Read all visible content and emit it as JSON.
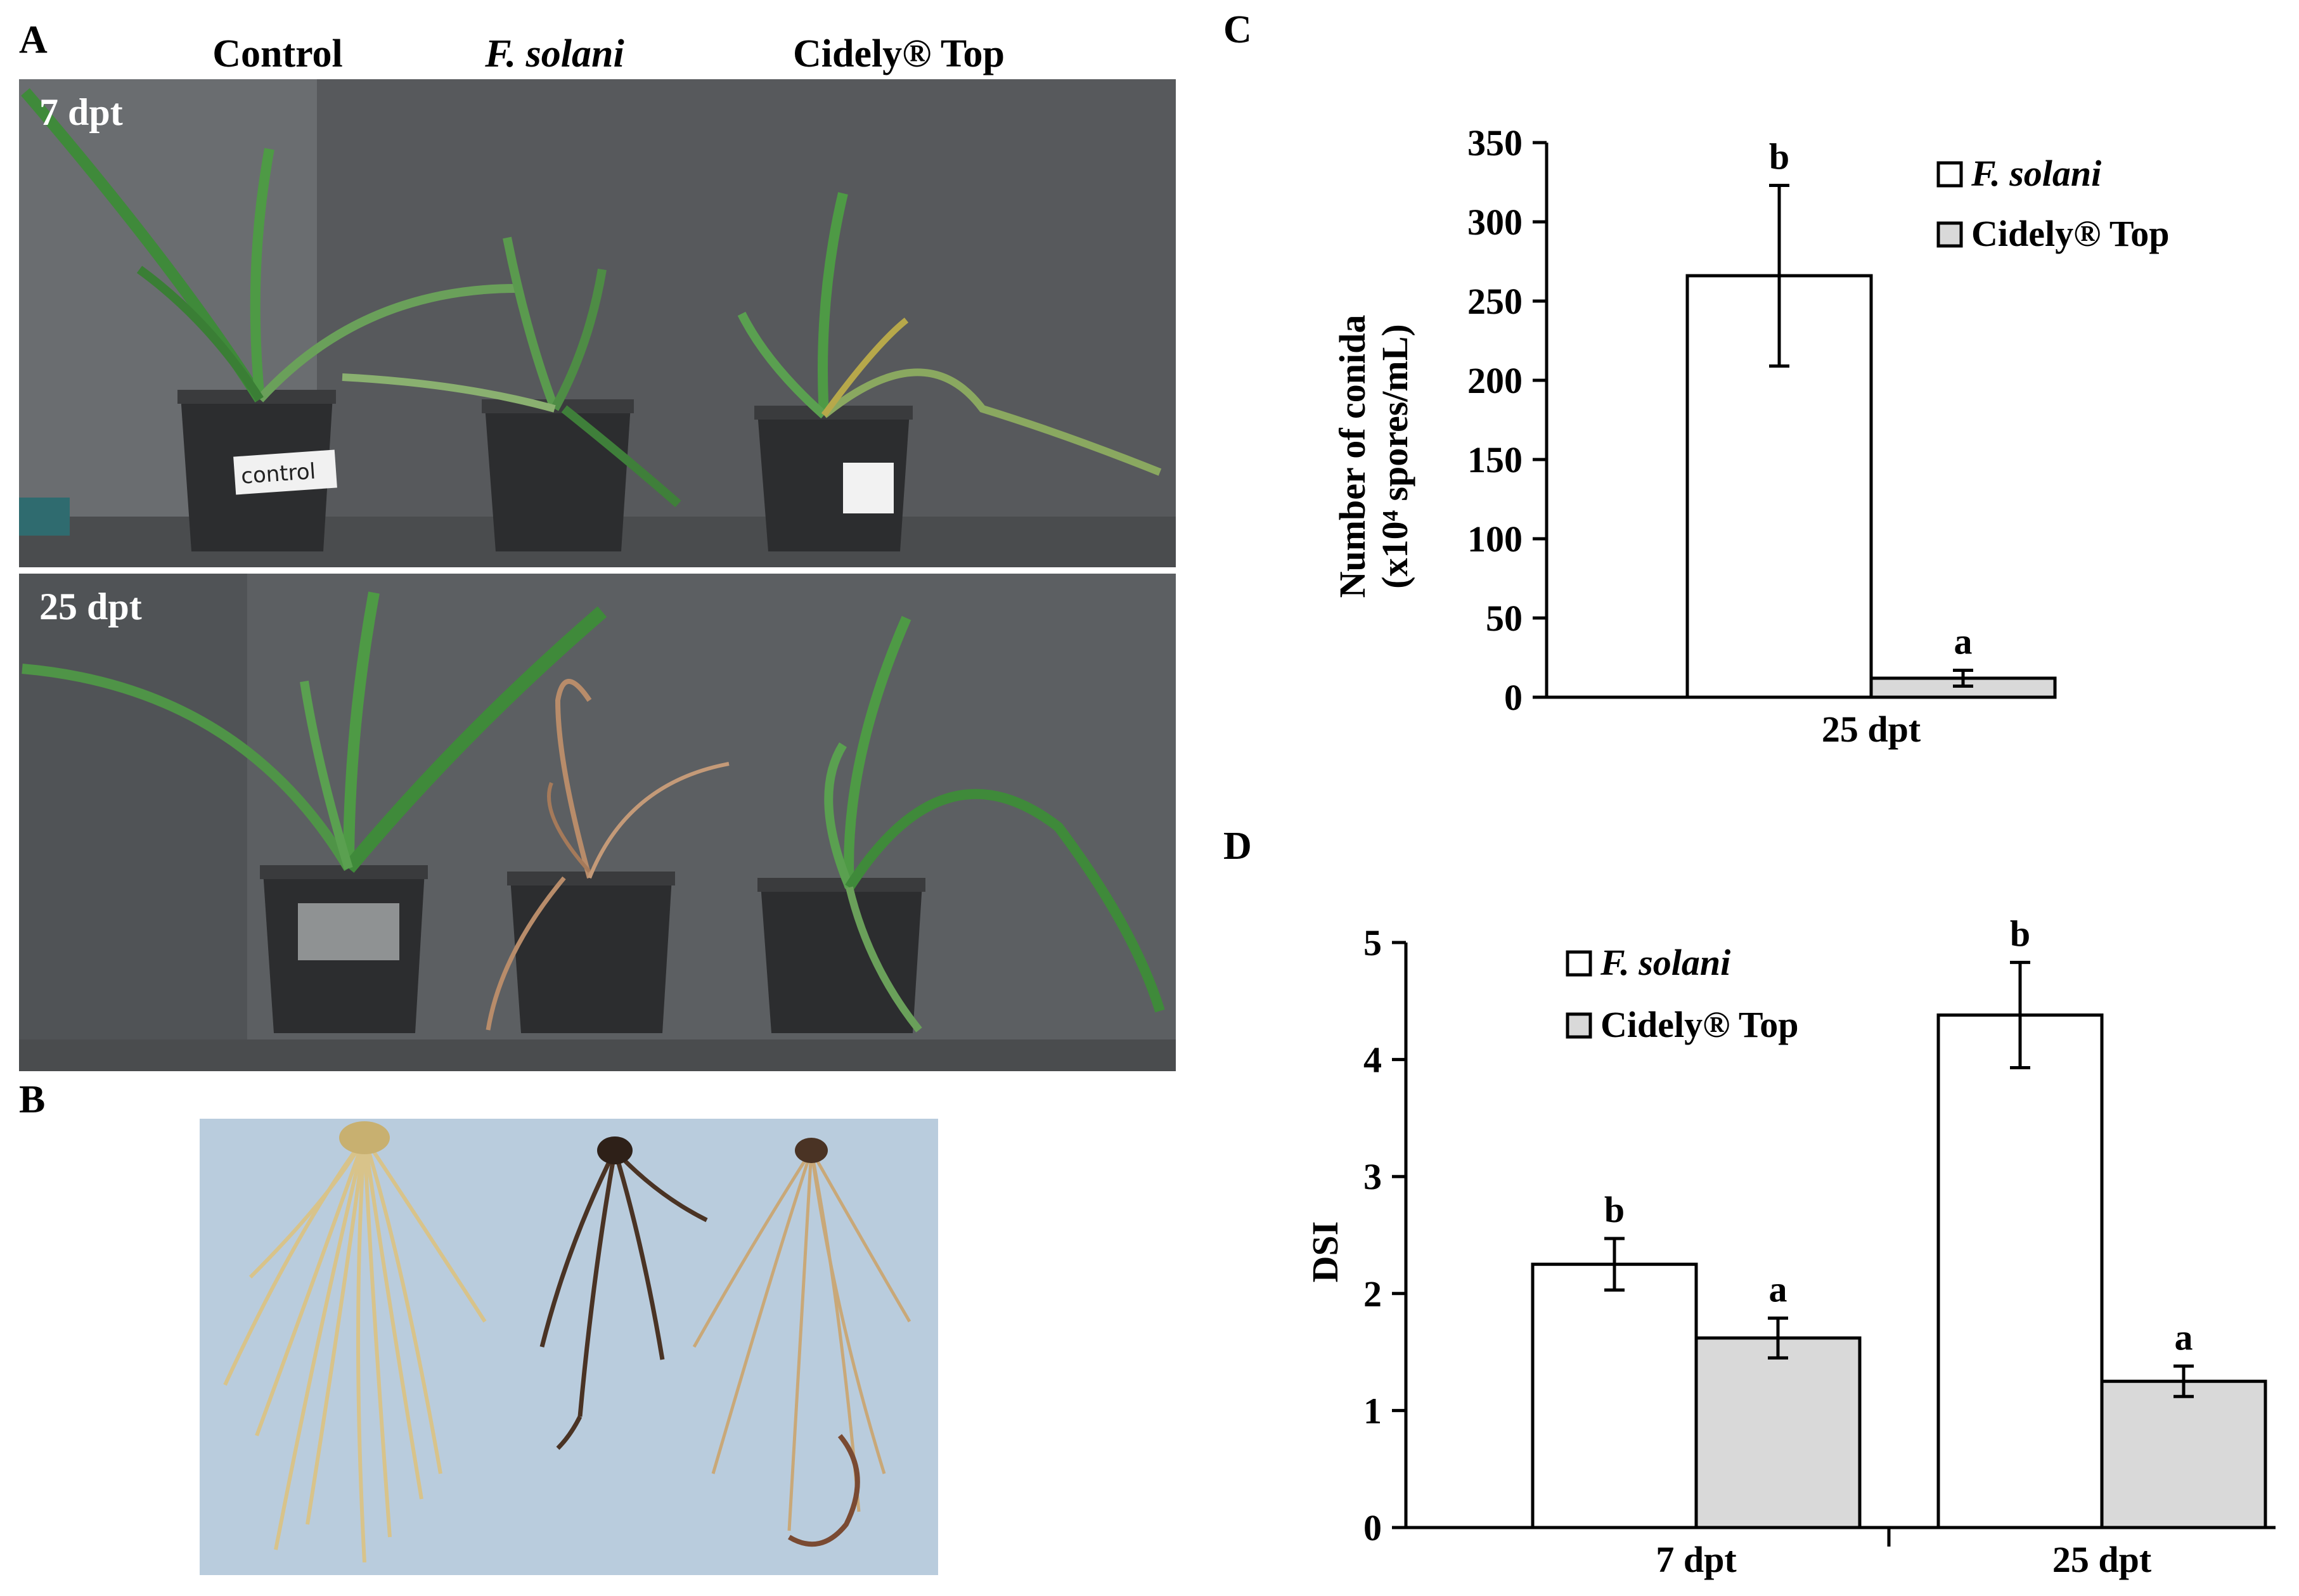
{
  "figure": {
    "panels": {
      "a_label": "A",
      "b_label": "B",
      "c_label": "C",
      "d_label": "D"
    },
    "panel_a": {
      "columns": [
        "Control",
        "F. solani",
        "Cidely® Top"
      ],
      "rows": [
        "7 dpt",
        "25 dpt"
      ],
      "pot_label": "control"
    }
  },
  "colors": {
    "fsolani_fill": "#ffffff",
    "cidely_fill": "#d9d9d9",
    "bar_stroke": "#000000",
    "backdrop": "#5a5d60",
    "root_bg": "#b9ccdd"
  },
  "chart_data": [
    {
      "panel": "C",
      "type": "bar",
      "categories": [
        "25 dpt"
      ],
      "series": [
        {
          "name": "F. solani",
          "values": [
            266
          ],
          "errors": [
            57
          ],
          "letters": [
            "b"
          ]
        },
        {
          "name": "Cidely® Top",
          "values": [
            12
          ],
          "errors": [
            5
          ],
          "letters": [
            "a"
          ]
        }
      ],
      "ylabel_line1": "Number  of conida",
      "ylabel_line2": "(x10⁴ spores/mL)",
      "ylim": [
        0,
        350
      ],
      "yticks": [
        "0",
        "50",
        "100",
        "150",
        "200",
        "250",
        "300",
        "350"
      ],
      "legend": "top-right"
    },
    {
      "panel": "D",
      "type": "bar",
      "categories": [
        "7 dpt",
        "25 dpt"
      ],
      "series": [
        {
          "name": "F. solani",
          "values": [
            2.25,
            4.38
          ],
          "errors": [
            0.22,
            0.45
          ],
          "letters": [
            "b",
            "b"
          ]
        },
        {
          "name": "Cidely® Top",
          "values": [
            1.62,
            1.25
          ],
          "errors": [
            0.17,
            0.13
          ],
          "letters": [
            "a",
            "a"
          ]
        }
      ],
      "ylabel": "DSI",
      "ylim": [
        0,
        5
      ],
      "yticks": [
        "0",
        "1",
        "2",
        "3",
        "4",
        "5"
      ],
      "legend": "top-left"
    }
  ]
}
